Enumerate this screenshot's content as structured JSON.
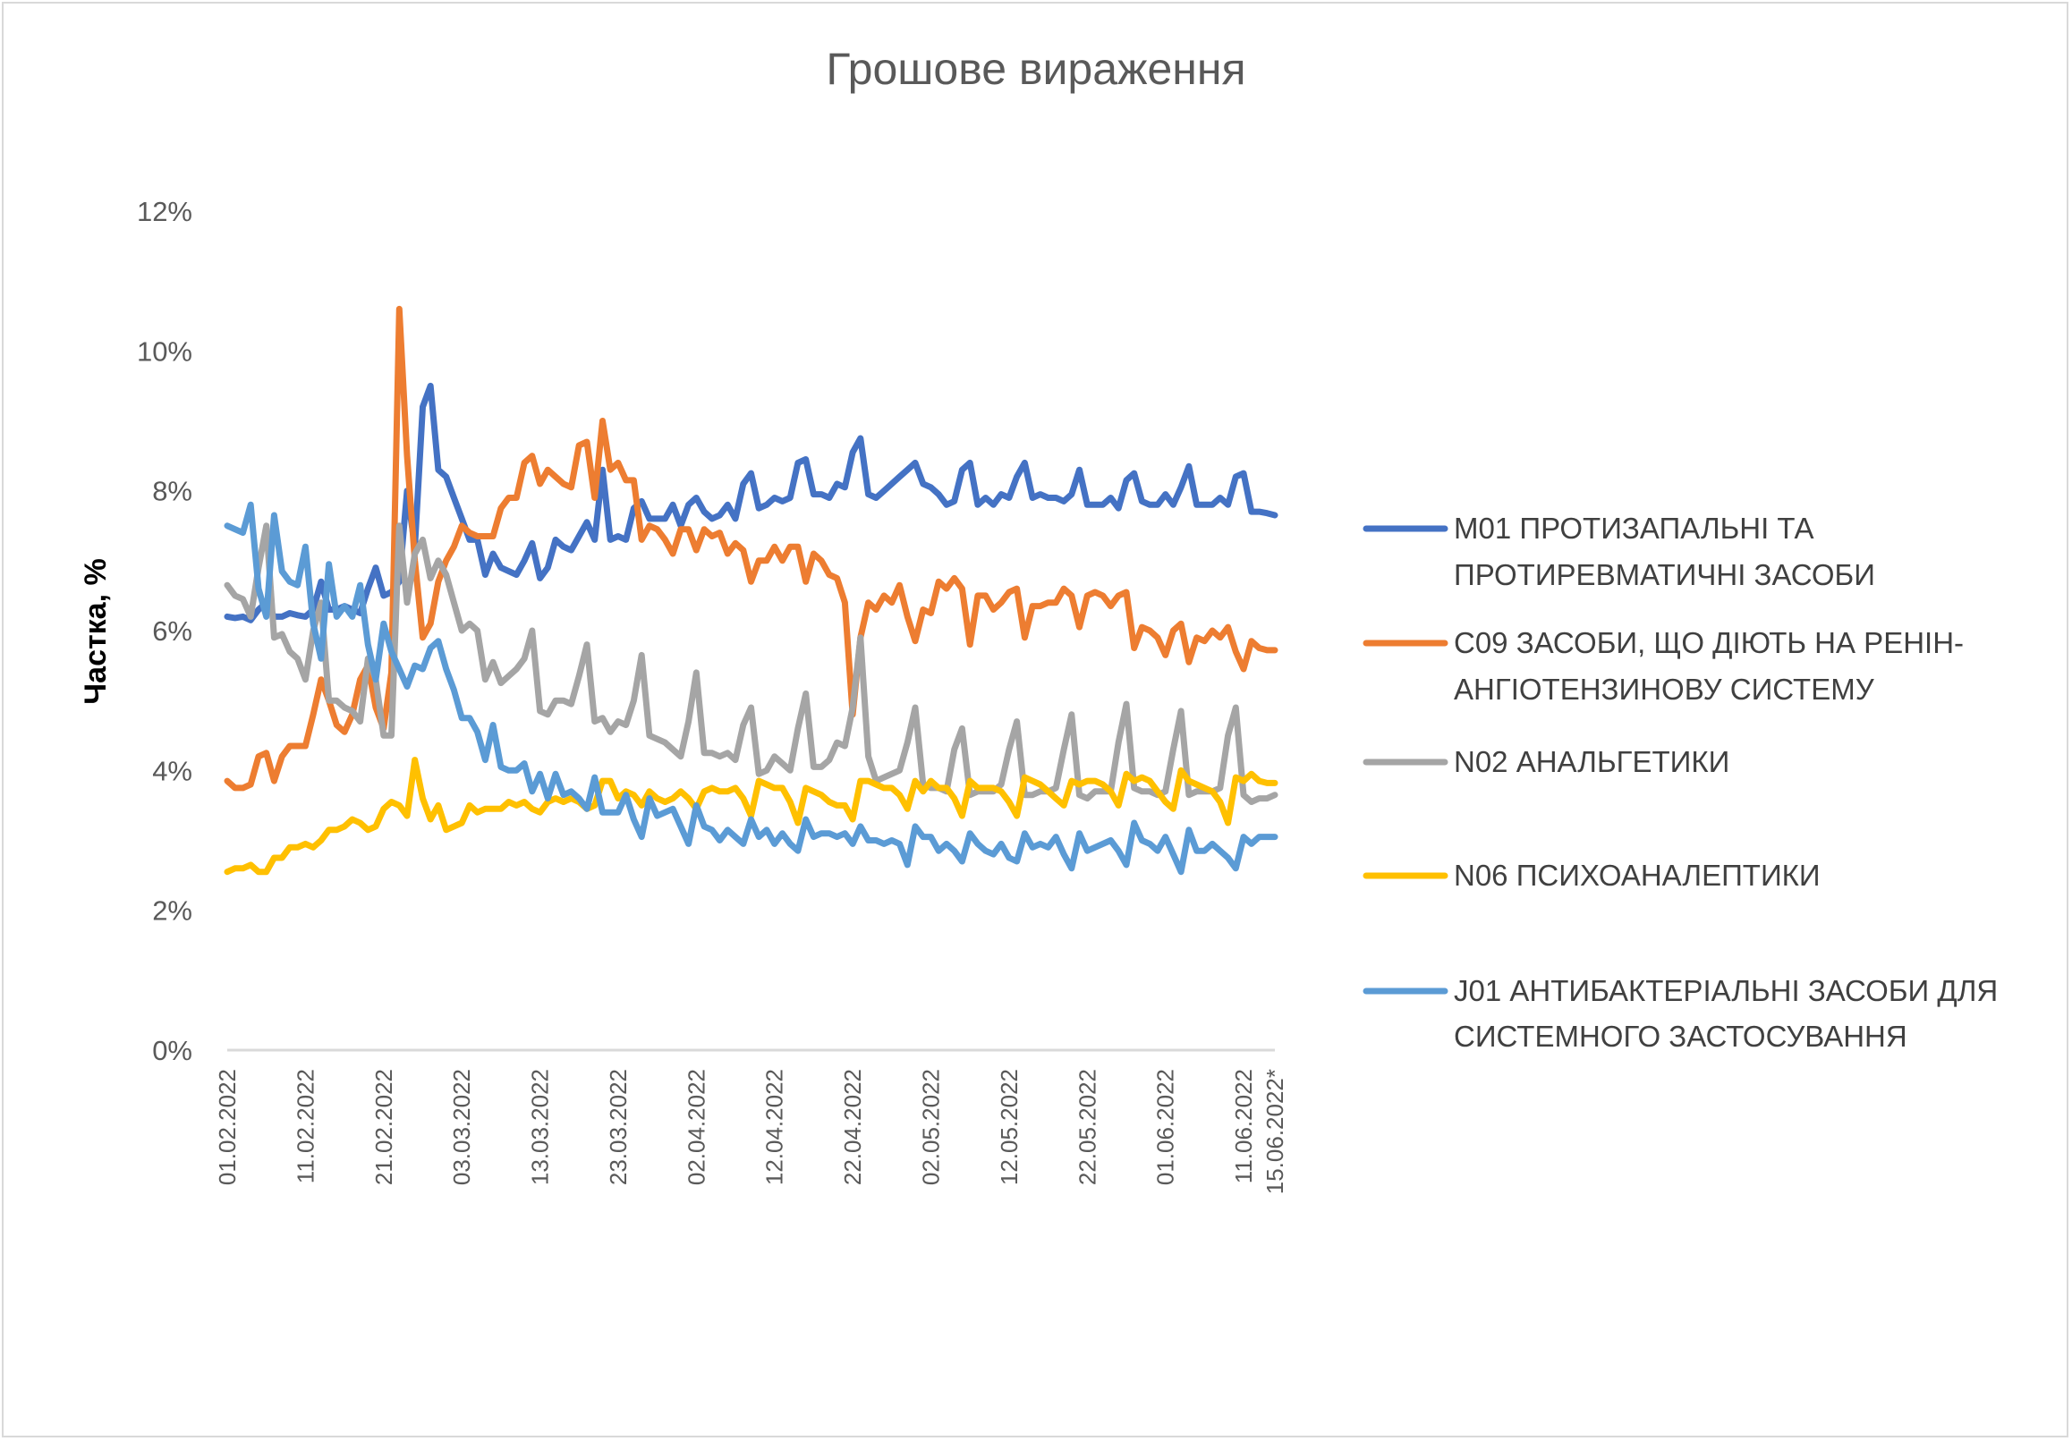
{
  "chart_data": {
    "type": "line",
    "title": "Грошове вираження",
    "xlabel": "",
    "ylabel": "Частка, %",
    "ylim": [
      0,
      12
    ],
    "yticks": [
      "0%",
      "2%",
      "4%",
      "6%",
      "8%",
      "10%",
      "12%"
    ],
    "x_start": "01.02.2022",
    "x_end": "15.06.2022*",
    "x_step": "1 day",
    "xtick_labels": [
      "01.02.2022",
      "11.02.2022",
      "21.02.2022",
      "03.03.2022",
      "13.03.2022",
      "23.03.2022",
      "02.04.2022",
      "12.04.2022",
      "22.04.2022",
      "02.05.2022",
      "12.05.2022",
      "22.05.2022",
      "01.06.2022",
      "11.06.2022",
      "15.06.2022*"
    ],
    "xtick_day_index": [
      0,
      10,
      20,
      30,
      40,
      50,
      60,
      70,
      80,
      90,
      100,
      110,
      120,
      130,
      134
    ],
    "grid": false,
    "legend_position": "right",
    "series": [
      {
        "name": "M01 ПРОТИЗАПАЛЬНІ ТА ПРОТИРЕВМАТИЧНІ ЗАСОБИ",
        "legend_lines": [
          "M01 ПРОТИЗАПАЛЬНІ ТА",
          "ПРОТИРЕВМАТИЧНІ ЗАСОБИ"
        ],
        "color": "#4472c4",
        "values": [
          6.2,
          6.18,
          6.2,
          6.15,
          6.3,
          6.4,
          6.2,
          6.2,
          6.25,
          6.22,
          6.2,
          6.3,
          6.7,
          6.3,
          6.3,
          6.35,
          6.3,
          6.25,
          6.6,
          6.9,
          6.5,
          6.55,
          6.7,
          8.0,
          7.2,
          9.2,
          9.5,
          8.3,
          8.2,
          7.9,
          7.6,
          7.3,
          7.3,
          6.8,
          7.1,
          6.9,
          6.85,
          6.8,
          7.0,
          7.25,
          6.75,
          6.9,
          7.3,
          7.2,
          7.15,
          7.35,
          7.55,
          7.3,
          8.3,
          7.3,
          7.35,
          7.3,
          7.75,
          7.85,
          7.6,
          7.6,
          7.6,
          7.8,
          7.5,
          7.8,
          7.9,
          7.7,
          7.6,
          7.65,
          7.8,
          7.6,
          8.1,
          8.25,
          7.75,
          7.8,
          7.9,
          7.85,
          7.9,
          8.4,
          8.45,
          7.95,
          7.95,
          7.9,
          8.1,
          8.05,
          8.55,
          8.75,
          7.95,
          7.9,
          8.0,
          8.1,
          8.2,
          8.3,
          8.4,
          8.1,
          8.05,
          7.95,
          7.8,
          7.85,
          8.3,
          8.4,
          7.8,
          7.9,
          7.8,
          7.95,
          7.9,
          8.2,
          8.4,
          7.9,
          7.95,
          7.9,
          7.9,
          7.85,
          7.95,
          8.3,
          7.8,
          7.8,
          7.8,
          7.9,
          7.75,
          8.15,
          8.25,
          7.85,
          7.8,
          7.8,
          7.95,
          7.8,
          8.05,
          8.35,
          7.8,
          7.8,
          7.8,
          7.9,
          7.8,
          8.2,
          8.25,
          7.7,
          7.7,
          7.68,
          7.65
        ]
      },
      {
        "name": "C09 ЗАСОБИ, ЩО ДІЮТЬ НА РЕНІН-АНГІОТЕНЗИНОВУ СИСТЕМУ",
        "legend_lines": [
          "C09 ЗАСОБИ, ЩО ДІЮТЬ НА РЕНІН-",
          "АНГІОТЕНЗИНОВУ СИСТЕМУ"
        ],
        "color": "#ed7d31",
        "values": [
          3.85,
          3.75,
          3.75,
          3.8,
          4.2,
          4.25,
          3.85,
          4.2,
          4.35,
          4.35,
          4.35,
          4.8,
          5.3,
          5.0,
          4.65,
          4.55,
          4.8,
          5.3,
          5.5,
          4.9,
          4.6,
          5.4,
          10.6,
          8.5,
          7.0,
          5.9,
          6.1,
          6.7,
          7.0,
          7.2,
          7.5,
          7.4,
          7.35,
          7.35,
          7.35,
          7.75,
          7.9,
          7.9,
          8.4,
          8.5,
          8.1,
          8.3,
          8.2,
          8.1,
          8.05,
          8.65,
          8.7,
          7.9,
          9.0,
          8.3,
          8.4,
          8.15,
          8.15,
          7.3,
          7.5,
          7.45,
          7.3,
          7.1,
          7.45,
          7.45,
          7.15,
          7.45,
          7.35,
          7.4,
          7.1,
          7.25,
          7.15,
          6.7,
          7.0,
          7.0,
          7.2,
          7.0,
          7.2,
          7.2,
          6.7,
          7.1,
          7.0,
          6.8,
          6.75,
          6.4,
          4.8,
          5.9,
          6.4,
          6.3,
          6.5,
          6.4,
          6.65,
          6.2,
          5.85,
          6.3,
          6.25,
          6.7,
          6.6,
          6.75,
          6.6,
          5.8,
          6.5,
          6.5,
          6.3,
          6.4,
          6.55,
          6.6,
          5.9,
          6.35,
          6.35,
          6.4,
          6.4,
          6.6,
          6.5,
          6.05,
          6.5,
          6.55,
          6.5,
          6.35,
          6.5,
          6.55,
          5.75,
          6.05,
          6.0,
          5.9,
          5.65,
          6.0,
          6.1,
          5.55,
          5.9,
          5.85,
          6.0,
          5.9,
          6.05,
          5.7,
          5.45,
          5.85,
          5.75,
          5.72,
          5.72
        ]
      },
      {
        "name": "N02 АНАЛЬГЕТИКИ",
        "legend_lines": [
          "N02 АНАЛЬГЕТИКИ"
        ],
        "color": "#a5a5a5",
        "values": [
          6.65,
          6.5,
          6.45,
          6.2,
          6.9,
          7.5,
          5.9,
          5.95,
          5.7,
          5.6,
          5.3,
          6.0,
          6.4,
          5.0,
          5.0,
          4.9,
          4.85,
          4.7,
          5.6,
          5.3,
          4.5,
          4.5,
          7.5,
          6.4,
          7.1,
          7.3,
          6.75,
          7.0,
          6.8,
          6.4,
          6.0,
          6.1,
          6.0,
          5.3,
          5.55,
          5.25,
          5.35,
          5.45,
          5.6,
          6.0,
          4.85,
          4.8,
          5.0,
          5.0,
          4.95,
          5.35,
          5.8,
          4.7,
          4.75,
          4.55,
          4.7,
          4.65,
          5.0,
          5.65,
          4.5,
          4.45,
          4.4,
          4.3,
          4.2,
          4.7,
          5.4,
          4.25,
          4.25,
          4.2,
          4.25,
          4.15,
          4.65,
          4.9,
          3.95,
          4.0,
          4.2,
          4.1,
          4.0,
          4.6,
          5.1,
          4.05,
          4.05,
          4.15,
          4.4,
          4.35,
          4.9,
          5.9,
          4.2,
          3.85,
          3.9,
          3.95,
          4.0,
          4.4,
          4.9,
          3.8,
          3.75,
          3.75,
          3.7,
          4.3,
          4.6,
          3.65,
          3.7,
          3.7,
          3.7,
          3.8,
          4.3,
          4.7,
          3.65,
          3.65,
          3.7,
          3.7,
          3.75,
          4.3,
          4.8,
          3.65,
          3.6,
          3.7,
          3.7,
          3.7,
          4.4,
          4.95,
          3.75,
          3.7,
          3.7,
          3.65,
          3.7,
          4.3,
          4.85,
          3.65,
          3.7,
          3.7,
          3.7,
          3.75,
          4.5,
          4.9,
          3.65,
          3.55,
          3.6,
          3.6,
          3.65
        ]
      },
      {
        "name": "N06 ПСИХОАНАЛЕПТИКИ",
        "legend_lines": [
          "N06 ПСИХОАНАЛЕПТИКИ"
        ],
        "color": "#ffc000",
        "values": [
          2.55,
          2.6,
          2.6,
          2.65,
          2.55,
          2.55,
          2.75,
          2.75,
          2.9,
          2.9,
          2.95,
          2.9,
          3.0,
          3.15,
          3.15,
          3.2,
          3.3,
          3.25,
          3.15,
          3.2,
          3.45,
          3.55,
          3.5,
          3.35,
          4.15,
          3.6,
          3.3,
          3.5,
          3.15,
          3.2,
          3.25,
          3.5,
          3.4,
          3.45,
          3.45,
          3.45,
          3.55,
          3.5,
          3.55,
          3.45,
          3.4,
          3.55,
          3.6,
          3.55,
          3.6,
          3.55,
          3.45,
          3.5,
          3.85,
          3.85,
          3.6,
          3.7,
          3.65,
          3.5,
          3.7,
          3.6,
          3.55,
          3.6,
          3.7,
          3.6,
          3.45,
          3.7,
          3.75,
          3.7,
          3.7,
          3.75,
          3.6,
          3.35,
          3.85,
          3.8,
          3.75,
          3.75,
          3.55,
          3.25,
          3.75,
          3.7,
          3.65,
          3.55,
          3.5,
          3.5,
          3.3,
          3.85,
          3.85,
          3.8,
          3.75,
          3.75,
          3.65,
          3.45,
          3.85,
          3.7,
          3.85,
          3.75,
          3.75,
          3.6,
          3.35,
          3.85,
          3.75,
          3.75,
          3.75,
          3.7,
          3.55,
          3.35,
          3.9,
          3.85,
          3.8,
          3.7,
          3.6,
          3.5,
          3.85,
          3.8,
          3.85,
          3.85,
          3.8,
          3.7,
          3.5,
          3.95,
          3.85,
          3.9,
          3.85,
          3.7,
          3.55,
          3.45,
          4.0,
          3.85,
          3.8,
          3.75,
          3.7,
          3.55,
          3.25,
          3.9,
          3.85,
          3.95,
          3.85,
          3.82,
          3.82
        ]
      },
      {
        "name": "J01 АНТИБАКТЕРІАЛЬНІ ЗАСОБИ ДЛЯ СИСТЕМНОГО ЗАСТОСУВАННЯ",
        "legend_lines": [
          "J01 АНТИБАКТЕРІАЛЬНІ ЗАСОБИ ДЛЯ",
          "СИСТЕМНОГО ЗАСТОСУВАННЯ"
        ],
        "color": "#5b9bd5",
        "values": [
          7.5,
          7.45,
          7.4,
          7.8,
          6.6,
          6.2,
          7.65,
          6.85,
          6.7,
          6.65,
          7.2,
          6.1,
          5.6,
          6.95,
          6.2,
          6.35,
          6.2,
          6.65,
          5.8,
          5.3,
          6.1,
          5.7,
          5.45,
          5.2,
          5.5,
          5.45,
          5.75,
          5.85,
          5.45,
          5.15,
          4.75,
          4.75,
          4.55,
          4.15,
          4.65,
          4.05,
          4.0,
          4.0,
          4.1,
          3.7,
          3.95,
          3.6,
          3.95,
          3.65,
          3.7,
          3.6,
          3.45,
          3.9,
          3.4,
          3.4,
          3.4,
          3.65,
          3.3,
          3.05,
          3.6,
          3.35,
          3.4,
          3.45,
          3.2,
          2.95,
          3.5,
          3.2,
          3.15,
          3.0,
          3.15,
          3.05,
          2.95,
          3.3,
          3.05,
          3.15,
          2.95,
          3.1,
          2.95,
          2.85,
          3.3,
          3.05,
          3.1,
          3.1,
          3.05,
          3.1,
          2.95,
          3.2,
          3.0,
          3.0,
          2.95,
          3.0,
          2.95,
          2.65,
          3.2,
          3.05,
          3.05,
          2.85,
          2.95,
          2.85,
          2.7,
          3.1,
          2.95,
          2.85,
          2.8,
          2.95,
          2.75,
          2.7,
          3.1,
          2.9,
          2.95,
          2.9,
          3.05,
          2.8,
          2.6,
          3.1,
          2.85,
          2.9,
          2.95,
          3.0,
          2.85,
          2.65,
          3.25,
          3.0,
          2.95,
          2.85,
          3.05,
          2.8,
          2.55,
          3.15,
          2.85,
          2.85,
          2.95,
          2.85,
          2.75,
          2.6,
          3.05,
          2.95,
          3.05,
          3.05,
          3.05
        ]
      }
    ]
  }
}
